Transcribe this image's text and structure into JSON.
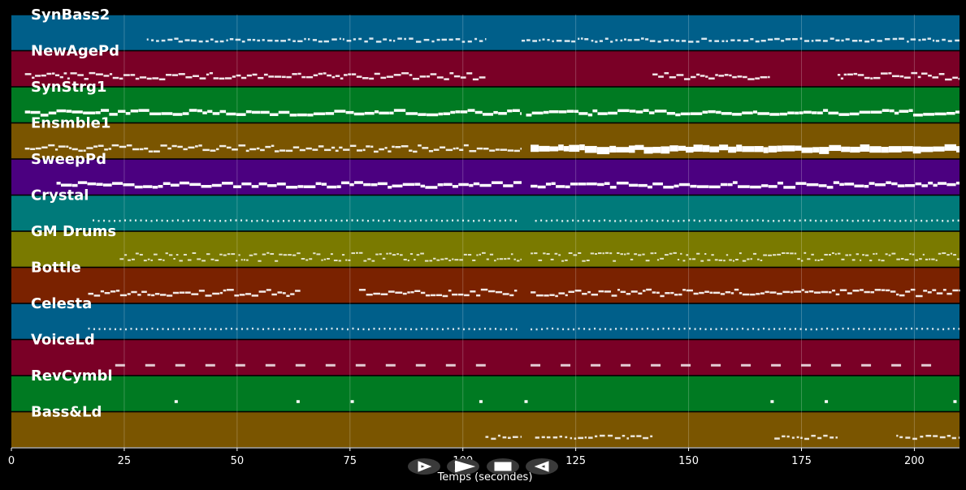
{
  "chart_data": {
    "type": "piano-roll",
    "xlabel": "Temps (secondes)",
    "xlim": [
      0,
      210
    ],
    "x_ticks": [
      0,
      25,
      50,
      75,
      100,
      125,
      150,
      175,
      200
    ],
    "grid": true,
    "tracks": [
      {
        "name": "SynBass2",
        "color": "#005f8a",
        "segments": [
          [
            30,
            37,
            "sparse"
          ],
          [
            37,
            105,
            "sparse"
          ],
          [
            113,
            210,
            "sparse"
          ]
        ]
      },
      {
        "name": "NewAgePd",
        "color": "#7a0026",
        "segments": [
          [
            3,
            105,
            "dense"
          ],
          [
            142,
            168,
            "dense"
          ],
          [
            183,
            210,
            "dense"
          ]
        ]
      },
      {
        "name": "SynStrg1",
        "color": "#007a22",
        "segments": [
          [
            3,
            113,
            "thick"
          ],
          [
            114,
            210,
            "thick"
          ]
        ]
      },
      {
        "name": "Ensmble1",
        "color": "#7a5500",
        "segments": [
          [
            3,
            113,
            "dense"
          ],
          [
            115,
            210,
            "block"
          ]
        ]
      },
      {
        "name": "SweepPd",
        "color": "#4b0080",
        "segments": [
          [
            10,
            113,
            "thick"
          ],
          [
            115,
            210,
            "thick"
          ]
        ]
      },
      {
        "name": "Crystal",
        "color": "#007a7a",
        "segments": [
          [
            18,
            112,
            "dots"
          ],
          [
            116,
            210,
            "dots"
          ]
        ]
      },
      {
        "name": "GM Drums",
        "color": "#7a7a00",
        "segments": [
          [
            24,
            113,
            "drums"
          ],
          [
            115,
            210,
            "drums"
          ]
        ]
      },
      {
        "name": "Bottle",
        "color": "#7a2200",
        "segments": [
          [
            17,
            64,
            "dense"
          ],
          [
            77,
            112,
            "dense"
          ],
          [
            115,
            210,
            "dense"
          ]
        ]
      },
      {
        "name": "Celesta",
        "color": "#005f8a",
        "segments": [
          [
            17,
            112,
            "dots"
          ],
          [
            115,
            210,
            "dots"
          ]
        ]
      },
      {
        "name": "VoiceLd",
        "color": "#7a0026",
        "segments": [
          [
            23,
            106,
            "clusters"
          ],
          [
            115,
            205,
            "clusters"
          ]
        ]
      },
      {
        "name": "RevCymbl",
        "color": "#007a22",
        "hits": [
          36.5,
          63.5,
          75.5,
          104,
          114,
          168.5,
          180.5,
          209
        ]
      },
      {
        "name": "Bass&Ld",
        "color": "#7a5500",
        "segments": [
          [
            105,
            113,
            "sparse"
          ],
          [
            116,
            142,
            "sparse"
          ],
          [
            169,
            183,
            "sparse"
          ],
          [
            196,
            210,
            "sparse"
          ]
        ]
      }
    ]
  },
  "controls": [
    {
      "name": "play-forward-button",
      "icon": "play-icon"
    },
    {
      "name": "fast-forward-button",
      "icon": "forward-icon"
    },
    {
      "name": "stop-button",
      "icon": "stop-icon"
    },
    {
      "name": "rewind-button",
      "icon": "rewind-icon"
    }
  ]
}
